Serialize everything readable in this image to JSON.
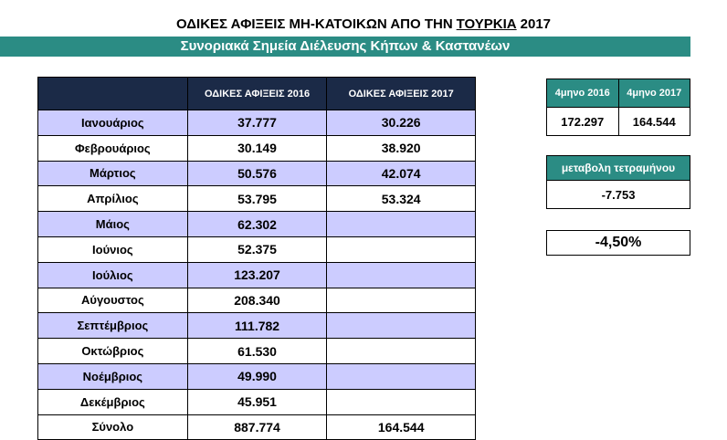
{
  "header": {
    "title_parts": [
      "ΟΔΙΚΕΣ ΑΦΙΞΕΙΣ ΜΗ-ΚΑΤΟΙΚΩΝ ΑΠΟ ΤΗΝ",
      "ΤΟΥΡΚΙΑ",
      "2017"
    ],
    "subtitle": "Συνοριακά Σημεία Διέλευσης Κήπων & Καστανέων"
  },
  "table": {
    "columns": [
      "ΟΔΙΚΕΣ ΑΦΙΞΕΙΣ 2016",
      "ΟΔΙΚΕΣ ΑΦΙΞΕΙΣ 2017"
    ],
    "rows": [
      [
        "Ιανουάριος",
        "37.777",
        "30.226"
      ],
      [
        "Φεβρουάριος",
        "30.149",
        "38.920"
      ],
      [
        "Μάρτιος",
        "50.576",
        "42.074"
      ],
      [
        "Απρίλιος",
        "53.795",
        "53.324"
      ],
      [
        "Μάιος",
        "62.302",
        null
      ],
      [
        "Ιούνιος",
        "52.375",
        null
      ],
      [
        "Ιούλιος",
        "123.207",
        null
      ],
      [
        "Αύγουστος",
        "208.340",
        null
      ],
      [
        "Σεπτέμβριος",
        "111.782",
        null
      ],
      [
        "Οκτώβριος",
        "61.530",
        null
      ],
      [
        "Νοέμβριος",
        "49.990",
        null
      ],
      [
        "Δεκέμβριος",
        "45.951",
        null
      ],
      [
        "Σύνολο",
        "887.774",
        "164.544"
      ]
    ]
  },
  "summary": {
    "columns": [
      "4μηνο 2016",
      "4μηνο 2017"
    ],
    "values": [
      "172.297",
      "164.544"
    ],
    "change_label": "μεταβολη τετραμήνου",
    "change_value": "-7.753",
    "change_percent": "-4,50%"
  }
}
